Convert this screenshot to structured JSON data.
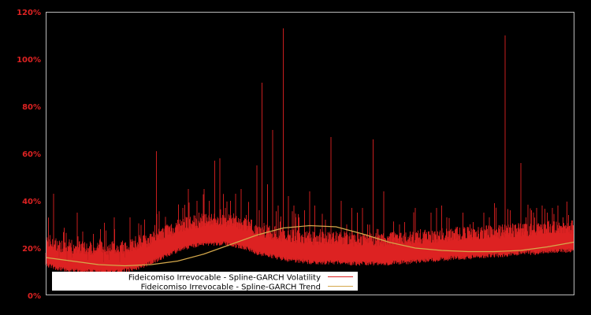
{
  "chart_data": {
    "type": "line",
    "title": "",
    "xlabel": "",
    "ylabel": "",
    "ylim": [
      0,
      120
    ],
    "yticks": [
      "0%",
      "20%",
      "40%",
      "60%",
      "80%",
      "100%",
      "120%"
    ],
    "ytick_values": [
      0,
      20,
      40,
      60,
      80,
      100,
      120
    ],
    "grid": false,
    "legend_position": "lower-left",
    "colors": {
      "background": "#000000",
      "volatility": "#dd2222",
      "trend": "#d4a84b",
      "axis": "#bbbbbb",
      "tick_label": "#dd2222"
    },
    "series": [
      {
        "name": "Fideicomiso Irrevocable - Spline-GARCH Volatility",
        "color": "#dd2222",
        "x_frac": [
          0.0,
          0.01,
          0.015,
          0.02,
          0.025,
          0.03,
          0.04,
          0.05,
          0.06,
          0.07,
          0.08,
          0.09,
          0.1,
          0.11,
          0.12,
          0.13,
          0.14,
          0.15,
          0.16,
          0.17,
          0.18,
          0.19,
          0.2,
          0.21,
          0.22,
          0.23,
          0.24,
          0.25,
          0.26,
          0.27,
          0.28,
          0.29,
          0.3,
          0.31,
          0.32,
          0.33,
          0.34,
          0.35,
          0.36,
          0.37,
          0.38,
          0.39,
          0.4,
          0.41,
          0.42,
          0.43,
          0.44,
          0.45,
          0.46,
          0.47,
          0.48,
          0.49,
          0.5,
          0.51,
          0.52,
          0.53,
          0.54,
          0.55,
          0.56,
          0.57,
          0.58,
          0.59,
          0.6,
          0.61,
          0.62,
          0.63,
          0.64,
          0.65,
          0.66,
          0.67,
          0.68,
          0.69,
          0.7,
          0.71,
          0.72,
          0.73,
          0.74,
          0.75,
          0.76,
          0.77,
          0.78,
          0.79,
          0.8,
          0.81,
          0.82,
          0.83,
          0.84,
          0.85,
          0.86,
          0.87,
          0.88,
          0.89,
          0.9,
          0.91,
          0.92,
          0.93,
          0.94,
          0.95,
          0.96,
          0.97,
          0.98,
          0.99,
          1.0
        ],
        "peaks": [
          18,
          21,
          43,
          19,
          16,
          18,
          14,
          16,
          35,
          27,
          15,
          26,
          20,
          14,
          15,
          33,
          14,
          16,
          33,
          25,
          24,
          22,
          26,
          61,
          28,
          30,
          27,
          32,
          37,
          45,
          31,
          35,
          45,
          40,
          57,
          58,
          37,
          40,
          43,
          45,
          34,
          32,
          55,
          90,
          47,
          70,
          38,
          113,
          42,
          38,
          33,
          36,
          44,
          38,
          28,
          32,
          67,
          27,
          40,
          30,
          37,
          35,
          37,
          30,
          66,
          28,
          44,
          25,
          27,
          30,
          31,
          27,
          37,
          28,
          26,
          35,
          37,
          38,
          33,
          27,
          29,
          35,
          29,
          31,
          26,
          35,
          33,
          39,
          28,
          110,
          36,
          30,
          56,
          33,
          36,
          37,
          38,
          35,
          37,
          38,
          33,
          34,
          26
        ],
        "baseline": [
          14,
          13.5,
          13,
          12.5,
          12.5,
          12,
          12,
          11.5,
          11.5,
          11,
          11,
          11,
          11,
          11,
          11,
          11,
          11,
          11.5,
          12,
          12.5,
          13,
          14,
          15,
          16,
          17,
          18,
          19,
          20,
          21,
          21.5,
          22,
          22.5,
          23,
          23,
          23,
          23,
          23,
          22.5,
          22,
          21.5,
          21,
          20,
          19,
          18.5,
          18,
          17.5,
          17,
          16.5,
          16,
          16,
          15.5,
          15.5,
          15,
          15,
          15,
          15,
          15,
          15,
          15,
          15,
          14.5,
          14.5,
          14.5,
          14.5,
          14.5,
          14.5,
          14.5,
          14.5,
          15,
          15,
          15,
          15,
          15.5,
          15.5,
          16,
          16,
          16,
          16.5,
          16.5,
          17,
          17,
          17,
          17,
          17.5,
          17.5,
          17.5,
          18,
          18,
          18,
          18,
          18.5,
          18.5,
          19,
          19,
          19,
          19,
          19.5,
          19.5,
          20,
          20,
          20,
          20,
          20
        ]
      },
      {
        "name": "Fideicomiso Irrevocable - Spline-GARCH Trend",
        "color": "#d4a84b",
        "x_frac": [
          0.0,
          0.05,
          0.1,
          0.15,
          0.2,
          0.25,
          0.3,
          0.35,
          0.4,
          0.45,
          0.5,
          0.55,
          0.6,
          0.65,
          0.7,
          0.75,
          0.8,
          0.85,
          0.9,
          0.95,
          1.0
        ],
        "values": [
          16,
          14.5,
          13,
          12.5,
          13,
          14.5,
          17.5,
          21.5,
          25.5,
          28.5,
          29.5,
          29,
          26,
          22.5,
          20,
          19,
          18.5,
          18.5,
          19,
          20.5,
          22.5
        ]
      }
    ]
  },
  "legend": {
    "items": [
      {
        "label": "Fideicomiso Irrevocable - Spline-GARCH Volatility",
        "color": "#dd2222"
      },
      {
        "label": "Fideicomiso Irrevocable - Spline-GARCH Trend",
        "color": "#d4a84b"
      }
    ]
  }
}
